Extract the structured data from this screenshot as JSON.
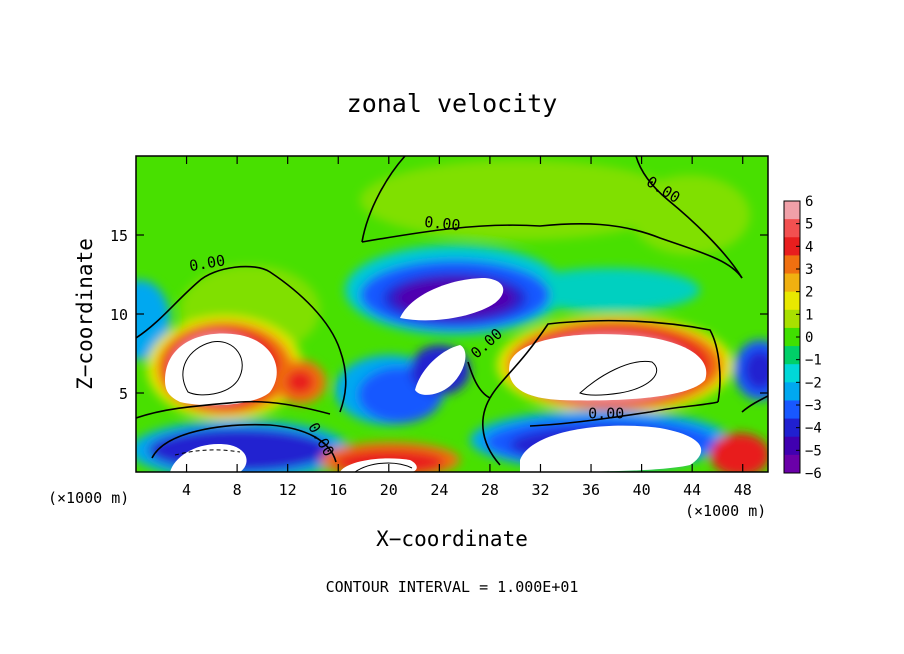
{
  "chart_data": {
    "type": "heatmap",
    "title": "zonal velocity",
    "xlabel": "X−coordinate",
    "ylabel": "Z−coordinate",
    "x_unit": "(×1000 m)",
    "y_unit": "(×1000 m)",
    "xlim": [
      0,
      50
    ],
    "ylim": [
      0,
      20
    ],
    "x_ticks": [
      {
        "value": 4,
        "label": "4"
      },
      {
        "value": 8,
        "label": "8"
      },
      {
        "value": 12,
        "label": "12"
      },
      {
        "value": 16,
        "label": "16"
      },
      {
        "value": 20,
        "label": "20"
      },
      {
        "value": 24,
        "label": "24"
      },
      {
        "value": 28,
        "label": "28"
      },
      {
        "value": 32,
        "label": "32"
      },
      {
        "value": 36,
        "label": "36"
      },
      {
        "value": 40,
        "label": "40"
      },
      {
        "value": 44,
        "label": "44"
      },
      {
        "value": 48,
        "label": "48"
      }
    ],
    "y_ticks": [
      {
        "value": 5,
        "label": "5"
      },
      {
        "value": 10,
        "label": "10"
      },
      {
        "value": 15,
        "label": "15"
      }
    ],
    "colorbar": {
      "ticks": [
        "6",
        "5",
        "4",
        "3",
        "2",
        "1",
        "0",
        "−1",
        "−2",
        "−3",
        "−4",
        "−5",
        "−6"
      ],
      "colors": [
        "#f0a0a8",
        "#f25050",
        "#e81e1e",
        "#f07010",
        "#f0b010",
        "#e8e800",
        "#a8e000",
        "#40e000",
        "#00d068",
        "#00d8d8",
        "#00a8f0",
        "#1858ff",
        "#2020d0",
        "#4000b0",
        "#6a00a8"
      ]
    },
    "contour_labels": [
      {
        "text": "0.00",
        "x": 5.7,
        "y": 12.9,
        "angle": -10
      },
      {
        "text": "0.00",
        "x": 24.2,
        "y": 15.4,
        "angle": 6
      },
      {
        "text": "0.00",
        "x": 41.5,
        "y": 17.6,
        "angle": 32
      },
      {
        "text": "0.00",
        "x": 28.0,
        "y": 7.9,
        "angle": -42
      },
      {
        "text": "0.00",
        "x": 37.2,
        "y": 3.4,
        "angle": 0
      },
      {
        "text": "0.00",
        "x": 14.3,
        "y": 1.9,
        "angle": 60
      }
    ],
    "footnote": "CONTOUR INTERVAL = 1.000E+01"
  }
}
